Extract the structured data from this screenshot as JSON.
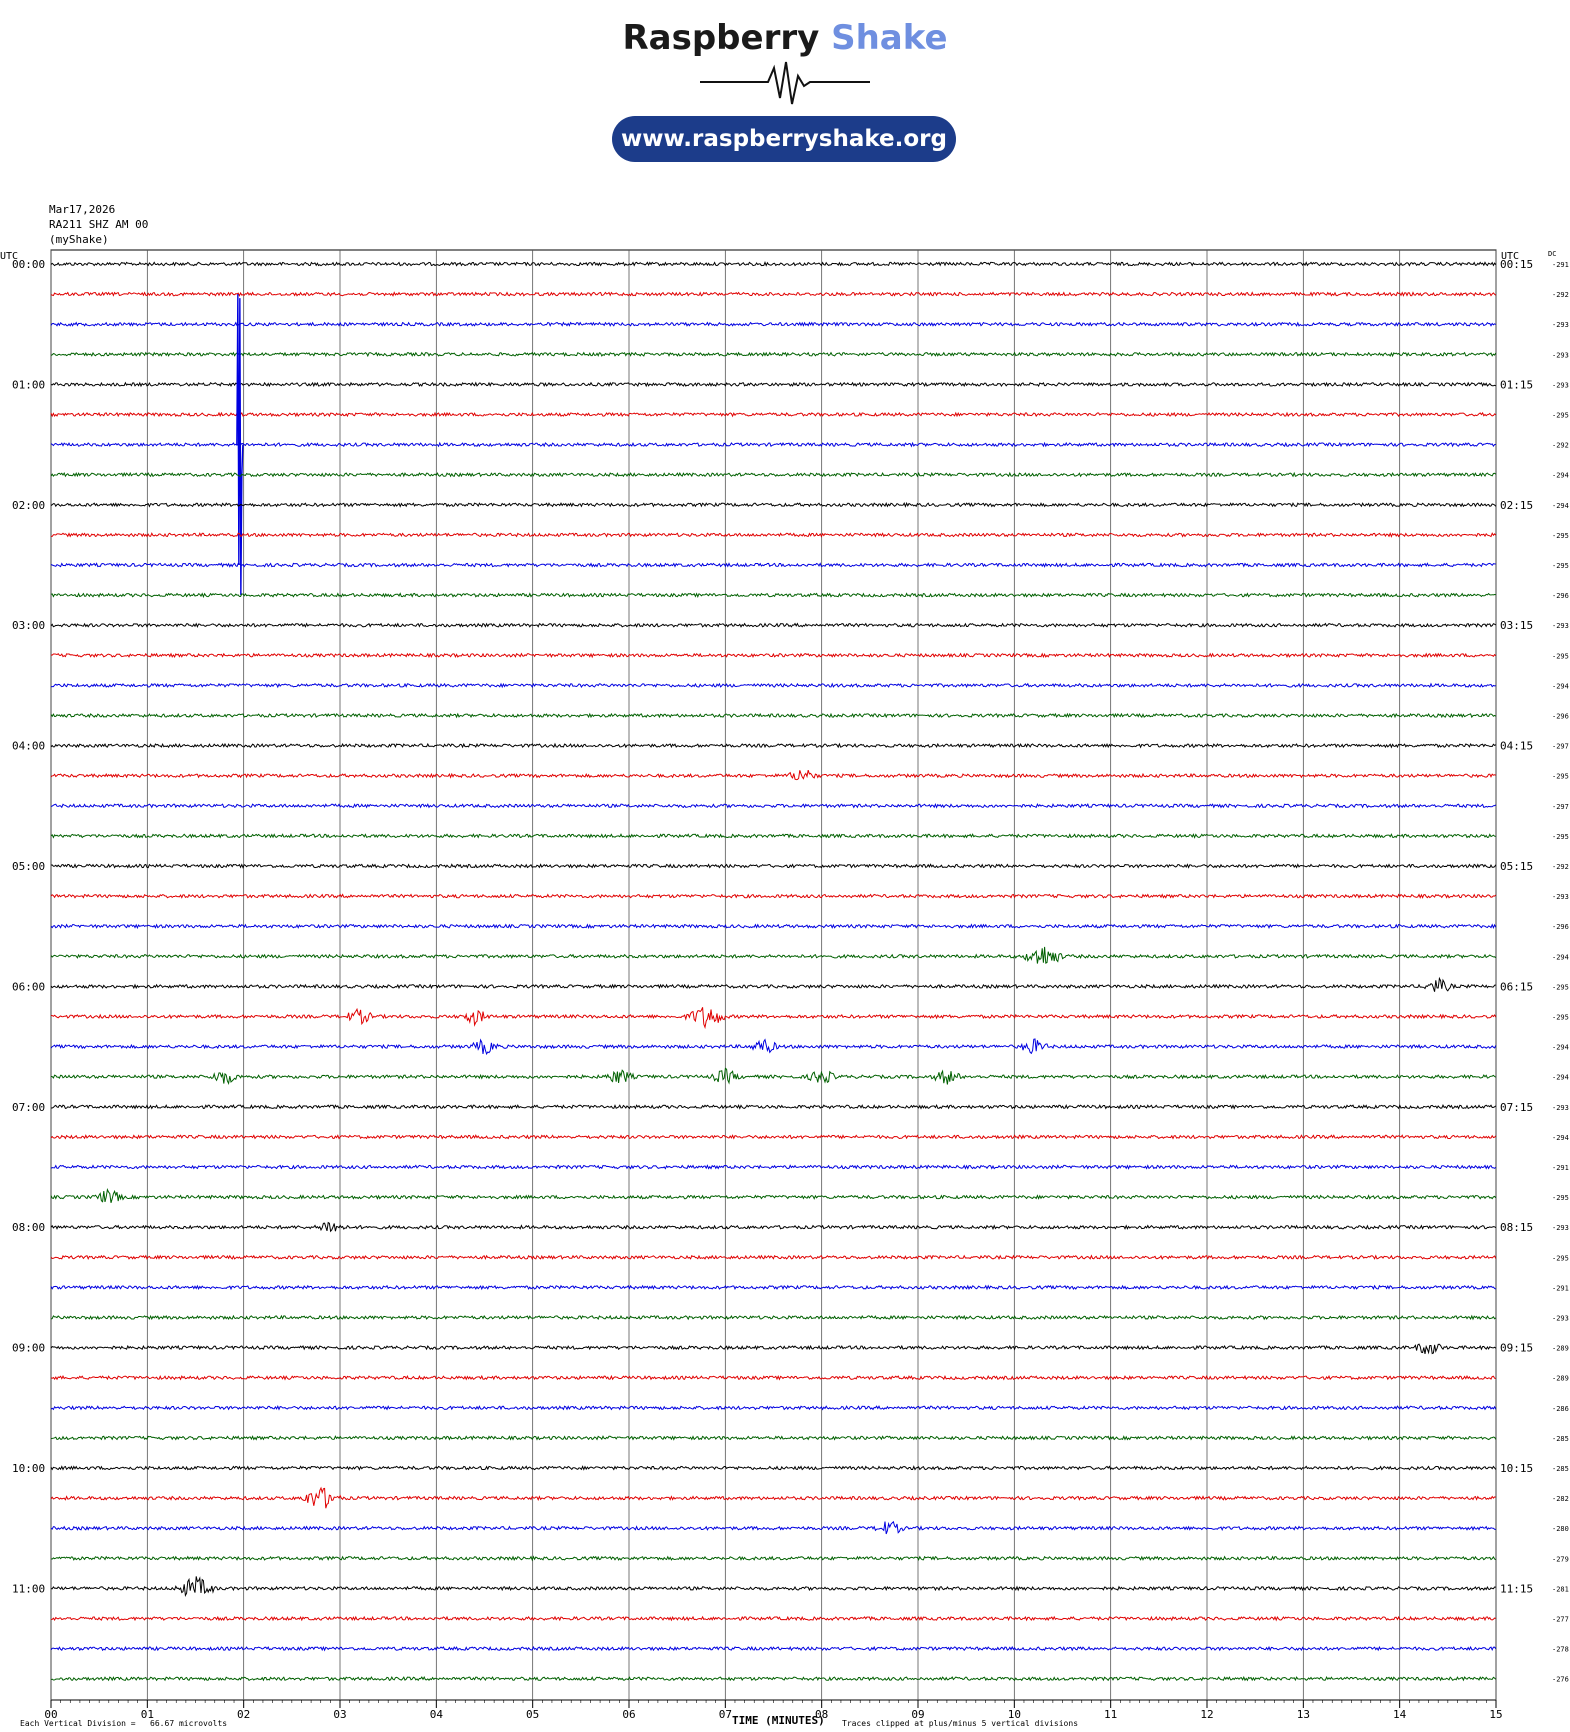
{
  "logo": {
    "word1": "Raspberry",
    "word2": "Shake",
    "url": "www.raspberryshake.org",
    "accent_color": "#6f8fe0",
    "pill_color": "#1c3c8a"
  },
  "header": {
    "date": "Mar17,2026",
    "station": "RA211 SHZ AM 00",
    "network": "(myShake)"
  },
  "chart_data": {
    "type": "line",
    "title": "",
    "xlabel": "TIME (MINUTES)",
    "ylabel": "UTC",
    "xlim": [
      0,
      15
    ],
    "x_ticks": [
      "00",
      "01",
      "02",
      "03",
      "04",
      "05",
      "06",
      "07",
      "08",
      "09",
      "10",
      "11",
      "12",
      "13",
      "14",
      "15"
    ],
    "left_time_labels": [
      "00:00",
      "01:00",
      "02:00",
      "03:00",
      "04:00",
      "05:00",
      "06:00",
      "07:00",
      "08:00",
      "09:00",
      "10:00",
      "11:00"
    ],
    "right_time_labels": [
      "00:15",
      "01:15",
      "02:15",
      "03:15",
      "04:15",
      "05:15",
      "06:15",
      "07:15",
      "08:15",
      "09:15",
      "10:15",
      "11:15"
    ],
    "right_header": "UTC",
    "dc_header": "DC",
    "dc_offsets": [
      -291,
      -292,
      -293,
      -293,
      -293,
      -295,
      -292,
      -294,
      -294,
      -295,
      -295,
      -296,
      -293,
      -295,
      -294,
      -296,
      -297,
      -295,
      -297,
      -295,
      -292,
      -293,
      -296,
      -294,
      -295,
      -295,
      -294,
      -294,
      -293,
      -294,
      -291,
      -295,
      -293,
      -295,
      -291,
      -293,
      -289,
      -289,
      -286,
      -285,
      -285,
      -282,
      -280,
      -279,
      -281,
      -277,
      -278,
      -276
    ],
    "trace_colors": [
      "#000000",
      "#e00000",
      "#0000e0",
      "#006000"
    ],
    "grid": true,
    "events": [
      {
        "row": 6,
        "minute": 1.95,
        "amplitude": "large",
        "note": "clipped spike"
      },
      {
        "row": 17,
        "minute": 7.8,
        "amplitude": "small"
      },
      {
        "row": 23,
        "minute": 10.3,
        "amplitude": "medium"
      },
      {
        "row": 24,
        "minute": 14.4,
        "amplitude": "small"
      },
      {
        "row": 25,
        "minute": 3.2,
        "amplitude": "small"
      },
      {
        "row": 25,
        "minute": 4.4,
        "amplitude": "small"
      },
      {
        "row": 25,
        "minute": 6.8,
        "amplitude": "medium"
      },
      {
        "row": 26,
        "minute": 4.5,
        "amplitude": "small"
      },
      {
        "row": 26,
        "minute": 7.4,
        "amplitude": "small"
      },
      {
        "row": 26,
        "minute": 10.2,
        "amplitude": "small"
      },
      {
        "row": 27,
        "minute": 1.8,
        "amplitude": "small"
      },
      {
        "row": 27,
        "minute": 5.9,
        "amplitude": "small"
      },
      {
        "row": 27,
        "minute": 7.0,
        "amplitude": "small"
      },
      {
        "row": 27,
        "minute": 8.0,
        "amplitude": "small"
      },
      {
        "row": 27,
        "minute": 9.3,
        "amplitude": "small"
      },
      {
        "row": 31,
        "minute": 0.6,
        "amplitude": "small"
      },
      {
        "row": 32,
        "minute": 2.9,
        "amplitude": "small"
      },
      {
        "row": 36,
        "minute": 14.3,
        "amplitude": "small"
      },
      {
        "row": 41,
        "minute": 2.8,
        "amplitude": "medium"
      },
      {
        "row": 42,
        "minute": 8.7,
        "amplitude": "small"
      },
      {
        "row": 44,
        "minute": 1.5,
        "amplitude": "medium"
      }
    ]
  },
  "footer": {
    "vertical_division_label": "Each Vertical Division =",
    "vertical_division_value": "66.67 microvolts",
    "axis_title": "TIME (MINUTES)",
    "clip_note": "Traces clipped at plus/minus 5 vertical divisions"
  }
}
